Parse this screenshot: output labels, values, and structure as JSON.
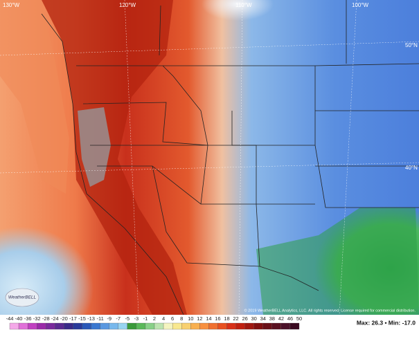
{
  "map": {
    "grid_labels": [
      "130°W",
      "120°W",
      "110°W",
      "100°W",
      "50°N",
      "40°N"
    ],
    "copyright": "© 2019 WeatherBELL Analytics, LLC. All rights reserved. License required for commercial distribution.",
    "logo": "WeatherBELL",
    "colorbar": {
      "ticks": [
        -44,
        -40,
        -36,
        -32,
        -28,
        -24,
        -20,
        -17,
        -15,
        -13,
        -11,
        -9,
        -7,
        -5,
        -3,
        -1,
        2,
        4,
        6,
        8,
        10,
        12,
        14,
        16,
        18,
        22,
        26,
        30,
        34,
        38,
        42,
        46,
        50
      ]
    },
    "stats": "Max: 26.3 • Min: -17.0"
  }
}
